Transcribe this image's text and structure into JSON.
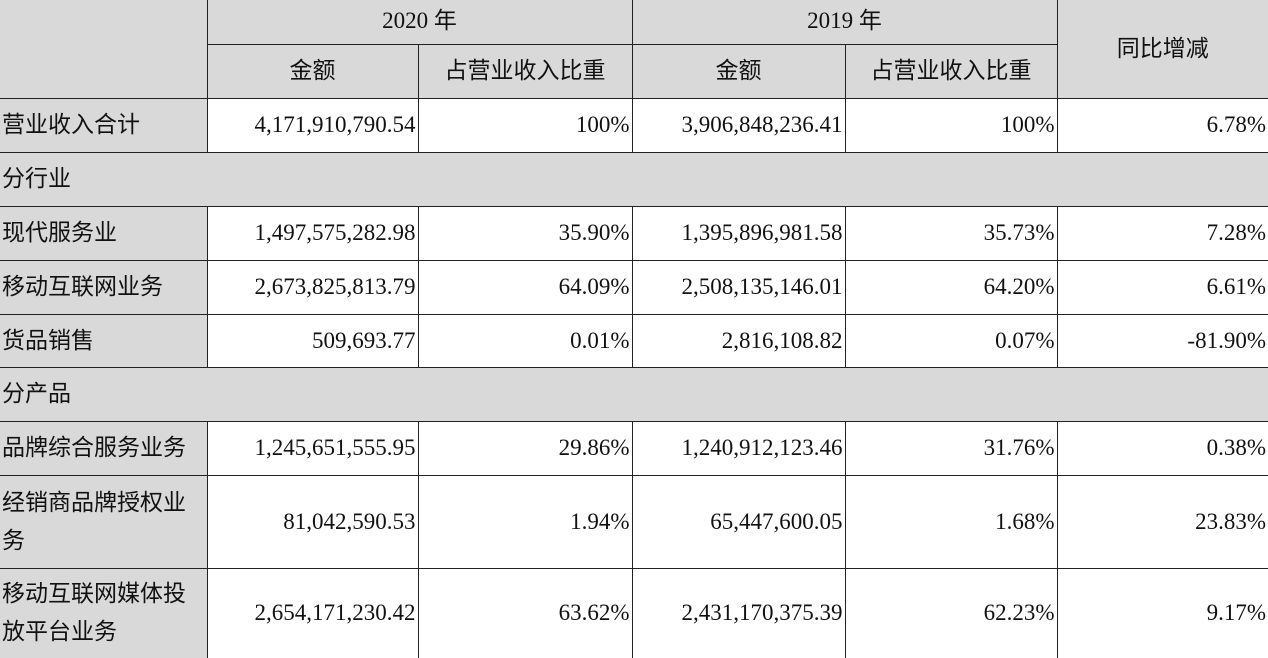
{
  "table": {
    "year_headers": [
      "2020 年",
      "2019 年"
    ],
    "change_header": "同比增减",
    "sub_headers": [
      "金额",
      "占营业收入比重",
      "金额",
      "占营业收入比重"
    ],
    "rows": [
      [
        "营业收入合计",
        "4,171,910,790.54",
        "100%",
        "3,906,848,236.41",
        "100%",
        "6.78%"
      ],
      [
        "分行业"
      ],
      [
        "现代服务业",
        "1,497,575,282.98",
        "35.90%",
        "1,395,896,981.58",
        "35.73%",
        "7.28%"
      ],
      [
        "移动互联网业务",
        "2,673,825,813.79",
        "64.09%",
        "2,508,135,146.01",
        "64.20%",
        "6.61%"
      ],
      [
        "货品销售",
        "509,693.77",
        "0.01%",
        "2,816,108.82",
        "0.07%",
        "-81.90%"
      ],
      [
        "分产品"
      ],
      [
        "品牌综合服务业务",
        "1,245,651,555.95",
        "29.86%",
        "1,240,912,123.46",
        "31.76%",
        "0.38%"
      ],
      [
        "经销商品牌授权业务",
        "81,042,590.53",
        "1.94%",
        "65,447,600.05",
        "1.68%",
        "23.83%"
      ],
      [
        "移动互联网媒体投放平台业务",
        "2,654,171,230.42",
        "63.62%",
        "2,431,170,375.39",
        "62.23%",
        "9.17%"
      ]
    ]
  }
}
